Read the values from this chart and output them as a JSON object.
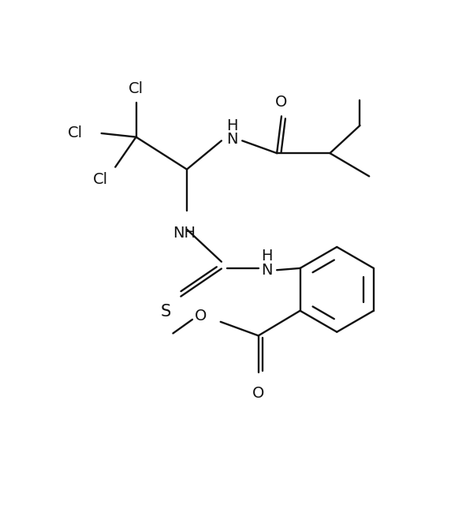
{
  "bg_color": "#ffffff",
  "line_color": "#111111",
  "line_width": 1.7,
  "fig_width": 5.91,
  "fig_height": 6.4,
  "dpi": 100,
  "xlim": [
    0,
    10
  ],
  "ylim": [
    0,
    10
  ],
  "font_size": 14
}
